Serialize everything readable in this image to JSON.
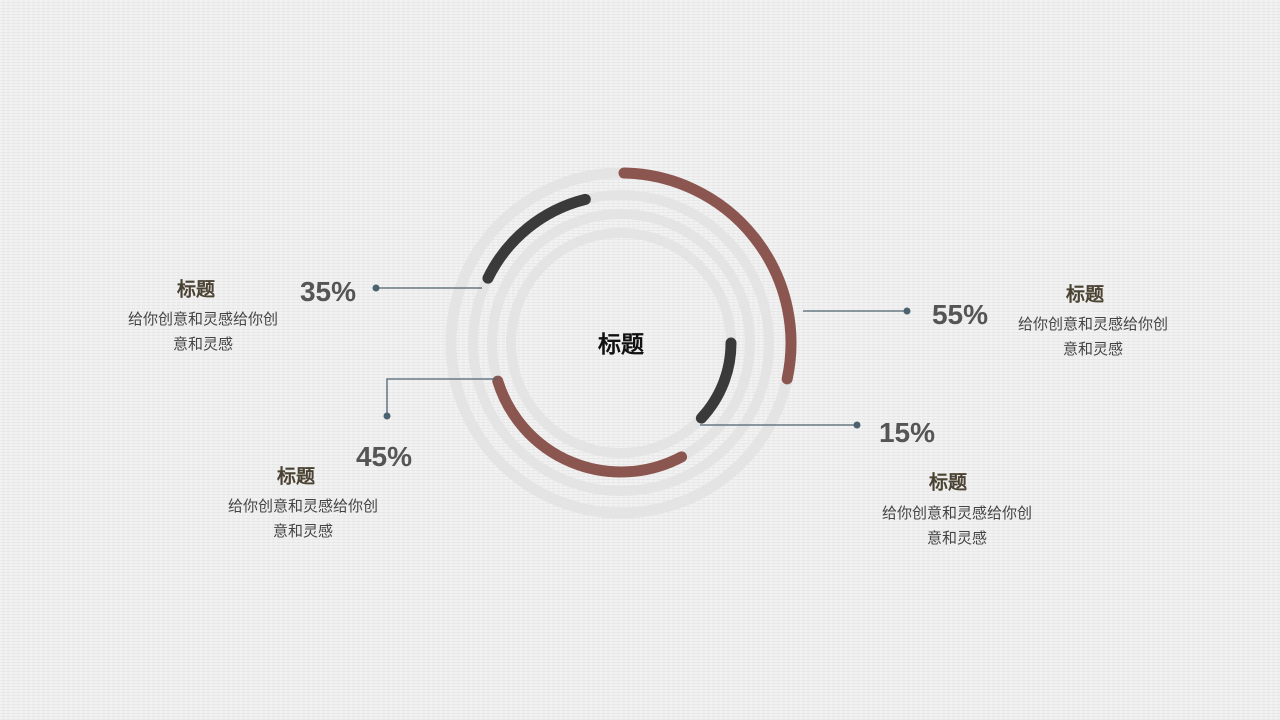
{
  "center_title": "标题",
  "colors": {
    "brown": "#8c5650",
    "dark": "#3a3a3a",
    "ring": "#e4e4e4",
    "connector": "#4d6270"
  },
  "chart_data": {
    "type": "radial-bar",
    "title": "标题",
    "items": [
      {
        "value": 55,
        "label": "55%",
        "title": "标题",
        "desc_line1": "给你创意和灵感给你创",
        "desc_line2": "意和灵感",
        "color": "#8c5650"
      },
      {
        "value": 35,
        "label": "35%",
        "title": "标题",
        "desc_line1": "给你创意和灵感给你创",
        "desc_line2": "意和灵感",
        "color": "#3a3a3a"
      },
      {
        "value": 45,
        "label": "45%",
        "title": "标题",
        "desc_line1": "给你创意和灵感给你创",
        "desc_line2": "意和灵感",
        "color": "#8c5650"
      },
      {
        "value": 15,
        "label": "15%",
        "title": "标题",
        "desc_line1": "给你创意和灵感给你创",
        "desc_line2": "意和灵感",
        "color": "#3a3a3a"
      }
    ]
  }
}
